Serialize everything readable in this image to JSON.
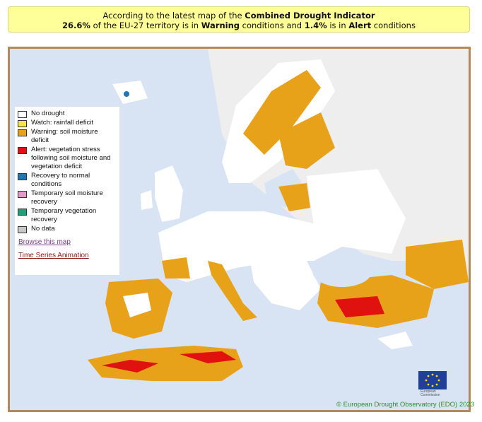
{
  "banner": {
    "line1_prefix": "According to the latest map of the ",
    "line1_bold": "Combined Drought Indicator",
    "pct_warning": "26.6%",
    "mid1": " of the EU-27 territory is in ",
    "warning_word": "Warning",
    "mid2": " conditions and ",
    "pct_alert": "1.4%",
    "mid3": " is in ",
    "alert_word": "Alert",
    "suffix": " conditions"
  },
  "legend": {
    "items": [
      {
        "label": "No drought",
        "color": "#ffffff"
      },
      {
        "label": "Watch: rainfall deficit",
        "color": "#f5e642"
      },
      {
        "label": "Warning: soil moisture deficit",
        "color": "#e8a21a"
      },
      {
        "label": "Alert: vegetation stress following soil moisture and vegetation deficit",
        "color": "#e0120f"
      },
      {
        "label": "Recovery to normal conditions",
        "color": "#1f78b4"
      },
      {
        "label": "Temporary soil moisture recovery",
        "color": "#e39ac8"
      },
      {
        "label": "Temporary vegetation recovery",
        "color": "#21a07a"
      },
      {
        "label": "No data",
        "color": "#c8c8c8"
      }
    ],
    "browse_link": "Browse this map",
    "animation_link": "Time Series Animation"
  },
  "logo": {
    "icon": "eu-flag-icon",
    "text1": "European",
    "text2": "Commission"
  },
  "credit": "© European Drought Observatory (EDO) 2023",
  "colors": {
    "sea": "#d8e3f4",
    "land_outside": "#eeeeee",
    "frame": "#b08a5a"
  }
}
